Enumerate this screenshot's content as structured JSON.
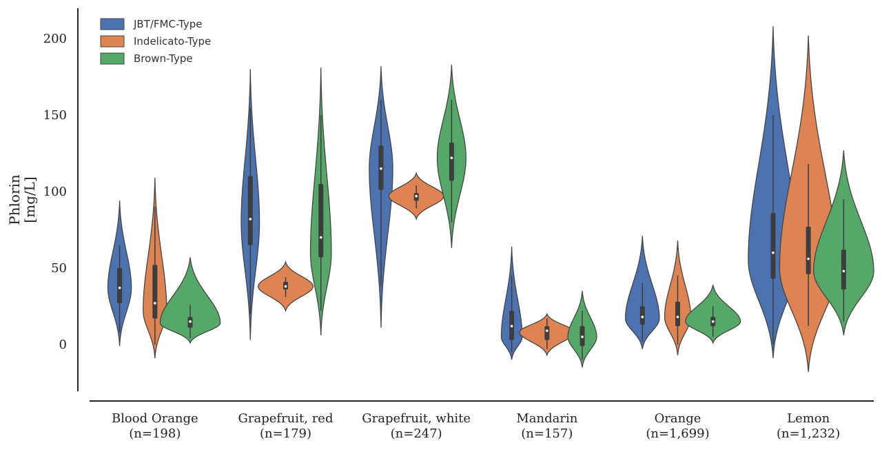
{
  "chart_data": {
    "type": "violin",
    "ylabel": [
      "Phlorin",
      "[mg/L]"
    ],
    "ylim": [
      -30,
      220
    ],
    "yticks": [
      0,
      50,
      100,
      150,
      200
    ],
    "grid": false,
    "legend_position": "top-left",
    "categories": [
      [
        "Blood Orange",
        "(n=198)"
      ],
      [
        "Grapefruit, red",
        "(n=179)"
      ],
      [
        "Grapefruit, white",
        "(n=247)"
      ],
      [
        "Mandarin",
        "(n=157)"
      ],
      [
        "Orange",
        "(n=1,699)"
      ],
      [
        "Lemon",
        "(n=1,232)"
      ]
    ],
    "series": [
      {
        "name": "JBT/FMC-Type",
        "color": "#4c72b0",
        "stats": [
          {
            "min": -1,
            "max": 94,
            "q1": 27,
            "median": 37,
            "q3": 50,
            "whisker_low": 8,
            "whisker_high": 65,
            "mode": 37,
            "width": 0.09
          },
          {
            "min": 3,
            "max": 180,
            "q1": 65,
            "median": 82,
            "q3": 110,
            "whisker_low": 20,
            "whisker_high": 155,
            "mode": 80,
            "width": 0.07
          },
          {
            "min": 11,
            "max": 182,
            "q1": 101,
            "median": 115,
            "q3": 130,
            "whisker_low": 38,
            "whisker_high": 160,
            "mode": 115,
            "width": 0.09
          },
          {
            "min": -10,
            "max": 64,
            "q1": 3,
            "median": 12,
            "q3": 22,
            "whisker_low": -5,
            "whisker_high": 45,
            "mode": 5,
            "width": 0.08
          },
          {
            "min": -3,
            "max": 71,
            "q1": 13,
            "median": 18,
            "q3": 25,
            "whisker_low": 2,
            "whisker_high": 40,
            "mode": 17,
            "width": 0.13
          },
          {
            "min": -9,
            "max": 208,
            "q1": 43,
            "median": 60,
            "q3": 86,
            "whisker_low": 0,
            "whisker_high": 150,
            "mode": 55,
            "width": 0.19
          }
        ]
      },
      {
        "name": "Indelicato-Type",
        "color": "#dd8452",
        "stats": [
          {
            "min": -9,
            "max": 109,
            "q1": 17,
            "median": 27,
            "q3": 52,
            "whisker_low": 0,
            "whisker_high": 90,
            "mode": 22,
            "width": 0.09
          },
          {
            "min": 22,
            "max": 54,
            "q1": 36,
            "median": 38,
            "q3": 41,
            "whisker_low": 31,
            "whisker_high": 44,
            "mode": 38,
            "width": 0.21
          },
          {
            "min": 82,
            "max": 112,
            "q1": 94,
            "median": 97,
            "q3": 99,
            "whisker_low": 89,
            "whisker_high": 104,
            "mode": 97,
            "width": 0.21
          },
          {
            "min": -7,
            "max": 20,
            "q1": 3,
            "median": 9,
            "q3": 12,
            "whisker_low": -3,
            "whisker_high": 17,
            "mode": 8,
            "width": 0.21
          },
          {
            "min": -7,
            "max": 68,
            "q1": 12,
            "median": 18,
            "q3": 28,
            "whisker_low": 0,
            "whisker_high": 45,
            "mode": 18,
            "width": 0.1
          },
          {
            "min": -18,
            "max": 202,
            "q1": 46,
            "median": 56,
            "q3": 77,
            "whisker_low": 12,
            "whisker_high": 118,
            "mode": 50,
            "width": 0.22
          }
        ]
      },
      {
        "name": "Brown-Type",
        "color": "#55a868",
        "stats": [
          {
            "min": 1,
            "max": 57,
            "q1": 11,
            "median": 15,
            "q3": 18,
            "whisker_low": 4,
            "whisker_high": 26,
            "mode": 14,
            "width": 0.23
          },
          {
            "min": 6,
            "max": 181,
            "q1": 57,
            "median": 70,
            "q3": 105,
            "whisker_low": 22,
            "whisker_high": 150,
            "mode": 60,
            "width": 0.08
          },
          {
            "min": 63,
            "max": 183,
            "q1": 107,
            "median": 122,
            "q3": 132,
            "whisker_low": 80,
            "whisker_high": 160,
            "mode": 122,
            "width": 0.11
          },
          {
            "min": -15,
            "max": 35,
            "q1": -1,
            "median": 5,
            "q3": 12,
            "whisker_low": -10,
            "whisker_high": 22,
            "mode": 5,
            "width": 0.11
          },
          {
            "min": 1,
            "max": 39,
            "q1": 12,
            "median": 15,
            "q3": 18,
            "whisker_low": 5,
            "whisker_high": 25,
            "mode": 15,
            "width": 0.21
          },
          {
            "min": 6,
            "max": 127,
            "q1": 36,
            "median": 48,
            "q3": 62,
            "whisker_low": 15,
            "whisker_high": 95,
            "mode": 48,
            "width": 0.23
          }
        ]
      }
    ]
  }
}
